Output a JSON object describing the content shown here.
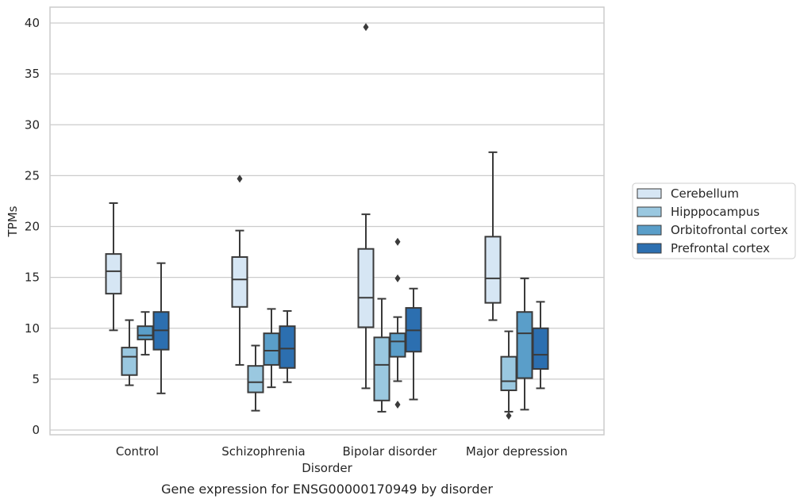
{
  "chart_data": {
    "type": "box",
    "caption": "Gene expression for ENSG00000170949 by disorder",
    "xlabel": "Disorder",
    "ylabel": "TPMs",
    "ylim": [
      -0.4,
      41.5
    ],
    "yticks": [
      0,
      5,
      10,
      15,
      20,
      25,
      30,
      35,
      40
    ],
    "grid": "horizontal",
    "legend_position": "right",
    "categories": [
      "Control",
      "Schizophrenia",
      "Bipolar disorder",
      "Major depression"
    ],
    "series": [
      {
        "name": "Cerebellum",
        "color": "#d6e6f4",
        "boxes": [
          {
            "whisker_low": 9.8,
            "q1": 13.4,
            "median": 15.6,
            "q3": 17.3,
            "whisker_high": 22.3,
            "outliers": []
          },
          {
            "whisker_low": 6.4,
            "q1": 12.1,
            "median": 14.8,
            "q3": 17.0,
            "whisker_high": 19.6,
            "outliers": [
              24.7
            ]
          },
          {
            "whisker_low": 4.1,
            "q1": 10.1,
            "median": 13.0,
            "q3": 17.8,
            "whisker_high": 21.2,
            "outliers": [
              39.6
            ]
          },
          {
            "whisker_low": 10.8,
            "q1": 12.5,
            "median": 14.9,
            "q3": 19.0,
            "whisker_high": 27.3,
            "outliers": []
          }
        ]
      },
      {
        "name": "Hipppocampus",
        "color": "#9ac8e0",
        "boxes": [
          {
            "whisker_low": 4.4,
            "q1": 5.4,
            "median": 7.2,
            "q3": 8.1,
            "whisker_high": 10.8,
            "outliers": []
          },
          {
            "whisker_low": 1.9,
            "q1": 3.7,
            "median": 4.7,
            "q3": 6.3,
            "whisker_high": 8.3,
            "outliers": []
          },
          {
            "whisker_low": 1.8,
            "q1": 2.9,
            "median": 6.4,
            "q3": 9.1,
            "whisker_high": 12.9,
            "outliers": []
          },
          {
            "whisker_low": 1.8,
            "q1": 3.9,
            "median": 4.8,
            "q3": 7.2,
            "whisker_high": 9.7,
            "outliers": [
              1.4
            ]
          }
        ]
      },
      {
        "name": "Orbitofrontal cortex",
        "color": "#5a9ec9",
        "boxes": [
          {
            "whisker_low": 7.4,
            "q1": 8.9,
            "median": 9.3,
            "q3": 10.2,
            "whisker_high": 11.6,
            "outliers": []
          },
          {
            "whisker_low": 4.2,
            "q1": 6.4,
            "median": 7.8,
            "q3": 9.5,
            "whisker_high": 11.9,
            "outliers": []
          },
          {
            "whisker_low": 4.8,
            "q1": 7.2,
            "median": 8.7,
            "q3": 9.5,
            "whisker_high": 11.1,
            "outliers": [
              18.5,
              14.9,
              2.5
            ]
          },
          {
            "whisker_low": 2.0,
            "q1": 5.1,
            "median": 9.5,
            "q3": 11.6,
            "whisker_high": 14.9,
            "outliers": []
          }
        ]
      },
      {
        "name": "Prefrontal cortex",
        "color": "#2c6fb0",
        "boxes": [
          {
            "whisker_low": 3.6,
            "q1": 7.9,
            "median": 9.8,
            "q3": 11.6,
            "whisker_high": 16.4,
            "outliers": []
          },
          {
            "whisker_low": 4.7,
            "q1": 6.1,
            "median": 8.0,
            "q3": 10.2,
            "whisker_high": 11.7,
            "outliers": []
          },
          {
            "whisker_low": 3.0,
            "q1": 7.7,
            "median": 9.8,
            "q3": 12.0,
            "whisker_high": 13.9,
            "outliers": []
          },
          {
            "whisker_low": 4.1,
            "q1": 6.0,
            "median": 7.4,
            "q3": 10.0,
            "whisker_high": 12.6,
            "outliers": []
          }
        ]
      }
    ]
  }
}
